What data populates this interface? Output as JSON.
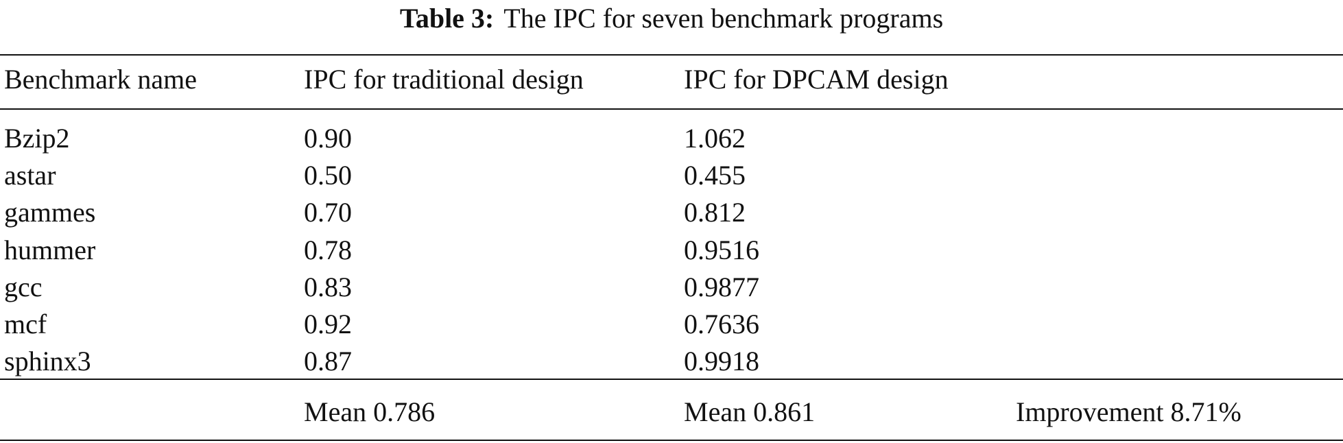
{
  "caption": {
    "label": "Table 3:",
    "text": "The IPC for seven benchmark programs"
  },
  "table": {
    "header": [
      "Benchmark name",
      "IPC for traditional design",
      "IPC for DPCAM design"
    ],
    "rows": [
      [
        "Bzip2",
        "0.90",
        "1.062"
      ],
      [
        "astar",
        "0.50",
        "0.455"
      ],
      [
        "gammes",
        "0.70",
        "0.812"
      ],
      [
        "hummer",
        "0.78",
        "0.9516"
      ],
      [
        "gcc",
        "0.83",
        "0.9877"
      ],
      [
        "mcf",
        "0.92",
        "0.7636"
      ],
      [
        "sphinx3",
        "0.87",
        "0.9918"
      ]
    ],
    "footer": [
      "Mean 0.786",
      "Mean 0.861",
      "Improvement 8.71%"
    ]
  }
}
